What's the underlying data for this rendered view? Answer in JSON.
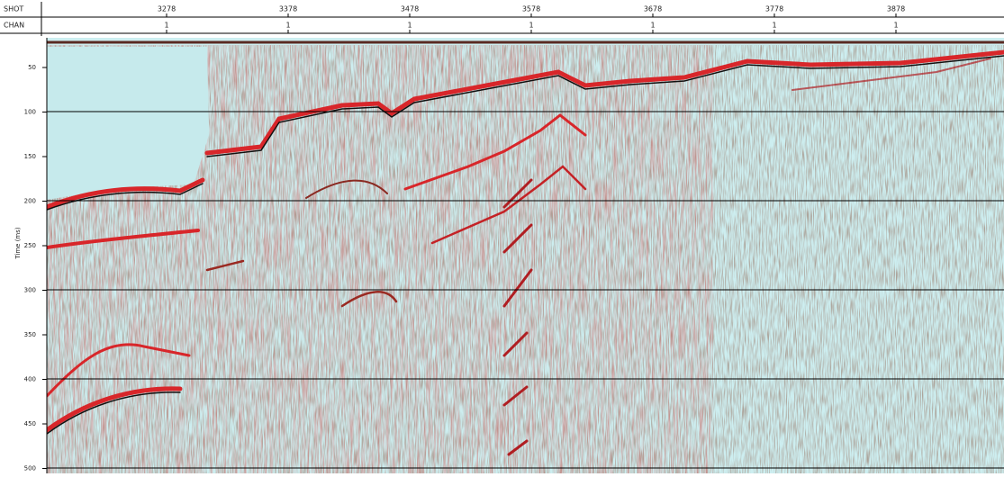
{
  "header": {
    "shot_label": "SHOT",
    "chan_label": "CHAN",
    "shots": [
      "3278",
      "3378",
      "3478",
      "3578",
      "3678",
      "3778",
      "3878"
    ],
    "chans": [
      "1",
      "1",
      "1",
      "1",
      "1",
      "1",
      "1"
    ]
  },
  "axis": {
    "label": "Time (ms)",
    "ticks": [
      50,
      100,
      150,
      200,
      250,
      300,
      350,
      400,
      450,
      500
    ]
  }
}
